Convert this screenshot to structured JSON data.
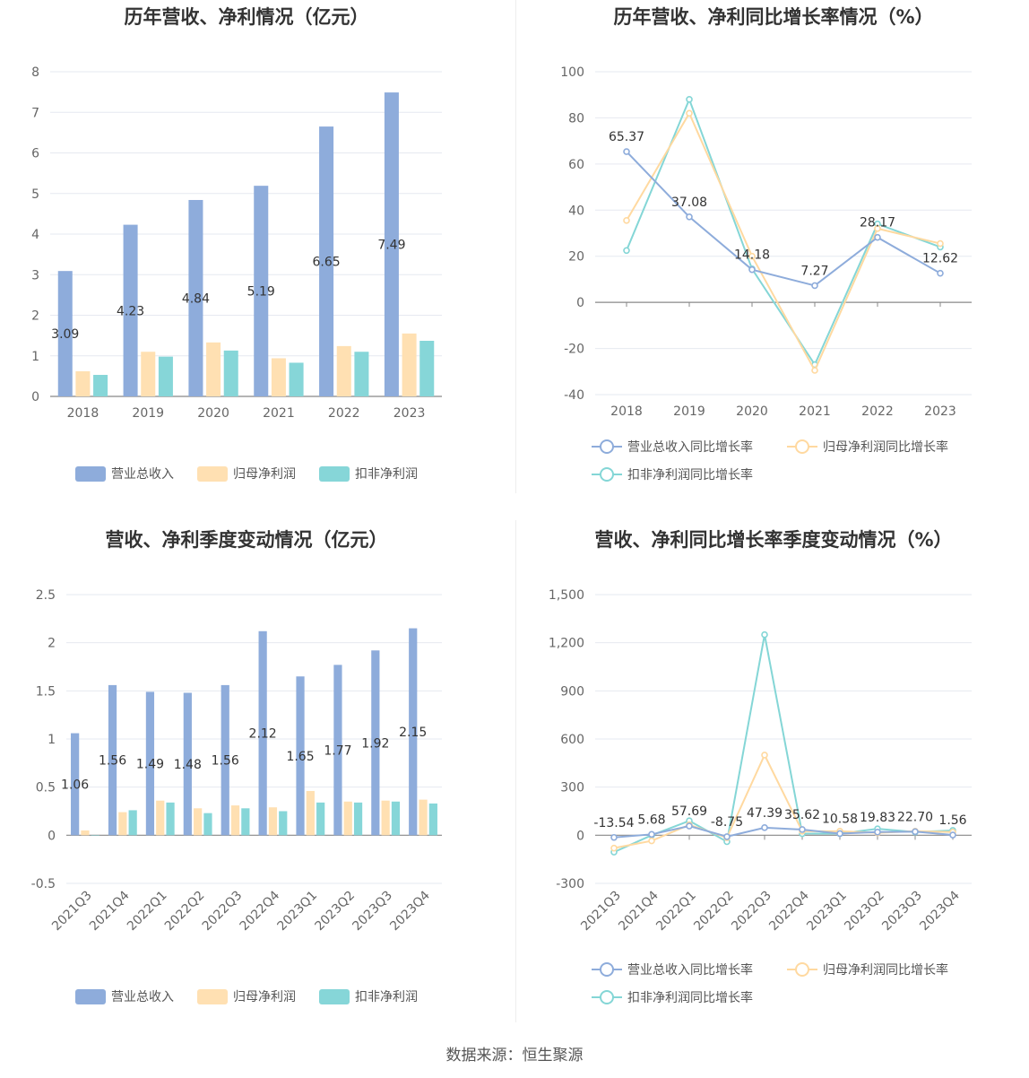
{
  "source": "数据来源：恒生聚源",
  "colors": {
    "revenue": "#8eacdb",
    "net": "#ffe0b2",
    "deducted": "#86d6d8",
    "line_revenue": "#8eacdb",
    "line_net": "#ffd9a0",
    "line_deducted": "#84d6d6"
  },
  "charts": [
    {
      "title": "历年营收、净利情况（亿元）",
      "chart_data": {
        "type": "bar",
        "categories": [
          "2018",
          "2019",
          "2020",
          "2021",
          "2022",
          "2023"
        ],
        "ylim": [
          0,
          8
        ],
        "yticks": [
          0,
          1,
          2,
          3,
          4,
          5,
          6,
          7,
          8
        ],
        "series": [
          {
            "name": "营业总收入",
            "values": [
              3.09,
              4.23,
              4.84,
              5.19,
              6.65,
              7.49
            ],
            "labels": [
              "3.09",
              "4.23",
              "4.84",
              "5.19",
              "6.65",
              "7.49"
            ]
          },
          {
            "name": "归母净利润",
            "values": [
              0.62,
              1.1,
              1.33,
              0.94,
              1.24,
              1.55
            ]
          },
          {
            "name": "扣非净利润",
            "values": [
              0.53,
              0.98,
              1.13,
              0.83,
              1.1,
              1.37
            ]
          }
        ]
      }
    },
    {
      "title": "历年营收、净利同比增长率情况（%）",
      "chart_data": {
        "type": "line",
        "categories": [
          "2018",
          "2019",
          "2020",
          "2021",
          "2022",
          "2023"
        ],
        "ylim": [
          -40,
          100
        ],
        "yticks": [
          -40,
          -20,
          0,
          20,
          40,
          60,
          80,
          100
        ],
        "series": [
          {
            "name": "营业总收入同比增长率",
            "values": [
              65.37,
              37.08,
              14.18,
              7.27,
              28.17,
              12.62
            ],
            "labels": [
              "65.37",
              "37.08",
              "14.18",
              "7.27",
              "28.17",
              "12.62"
            ]
          },
          {
            "name": "归母净利润同比增长率",
            "values": [
              35.5,
              82,
              20,
              -29.5,
              32,
              25.5
            ]
          },
          {
            "name": "扣非净利润同比增长率",
            "values": [
              22.5,
              88,
              14.5,
              -27,
              34,
              24
            ]
          }
        ]
      }
    },
    {
      "title": "营收、净利季度变动情况（亿元）",
      "chart_data": {
        "type": "bar",
        "categories": [
          "2021Q3",
          "2021Q4",
          "2022Q1",
          "2022Q2",
          "2022Q3",
          "2022Q4",
          "2023Q1",
          "2023Q2",
          "2023Q3",
          "2023Q4"
        ],
        "ylim": [
          -0.5,
          2.5
        ],
        "yticks": [
          -0.5,
          0,
          0.5,
          1,
          1.5,
          2,
          2.5
        ],
        "series": [
          {
            "name": "营业总收入",
            "values": [
              1.06,
              1.56,
              1.49,
              1.48,
              1.56,
              2.12,
              1.65,
              1.77,
              1.92,
              2.15
            ],
            "labels": [
              "1.06",
              "1.56",
              "1.49",
              "1.48",
              "1.56",
              "2.12",
              "1.65",
              "1.77",
              "1.92",
              "2.15"
            ]
          },
          {
            "name": "归母净利润",
            "values": [
              0.05,
              0.24,
              0.36,
              0.28,
              0.31,
              0.29,
              0.46,
              0.35,
              0.36,
              0.37
            ]
          },
          {
            "name": "扣非净利润",
            "values": [
              0,
              0.26,
              0.34,
              0.23,
              0.28,
              0.25,
              0.34,
              0.34,
              0.35,
              0.33
            ]
          }
        ]
      }
    },
    {
      "title": "营收、净利同比增长率季度变动情况（%）",
      "chart_data": {
        "type": "line",
        "categories": [
          "2021Q3",
          "2021Q4",
          "2022Q1",
          "2022Q2",
          "2022Q3",
          "2022Q4",
          "2023Q1",
          "2023Q2",
          "2023Q3",
          "2023Q4"
        ],
        "ylim": [
          -300,
          1500
        ],
        "yticks": [
          -300,
          0,
          300,
          600,
          900,
          1200,
          1500
        ],
        "ytick_labels": [
          "-300",
          "0",
          "300",
          "600",
          "900",
          "1,200",
          "1,500"
        ],
        "series": [
          {
            "name": "营业总收入同比增长率",
            "values": [
              -13.54,
              5.68,
              57.69,
              -8.75,
              47.39,
              35.62,
              10.58,
              19.83,
              22.7,
              1.56
            ],
            "labels": [
              "-13.54",
              "5.68",
              "57.69",
              "-8.75",
              "47.39",
              "35.62",
              "10.58",
              "19.83",
              "22.70",
              "1.56"
            ]
          },
          {
            "name": "归母净利润同比增长率",
            "values": [
              -80,
              -35,
              65,
              -15,
              500,
              25,
              25,
              15,
              25,
              20
            ]
          },
          {
            "name": "扣非净利润同比增长率",
            "values": [
              -105,
              0,
              90,
              -40,
              1250,
              10,
              10,
              40,
              20,
              30
            ]
          }
        ]
      }
    }
  ]
}
